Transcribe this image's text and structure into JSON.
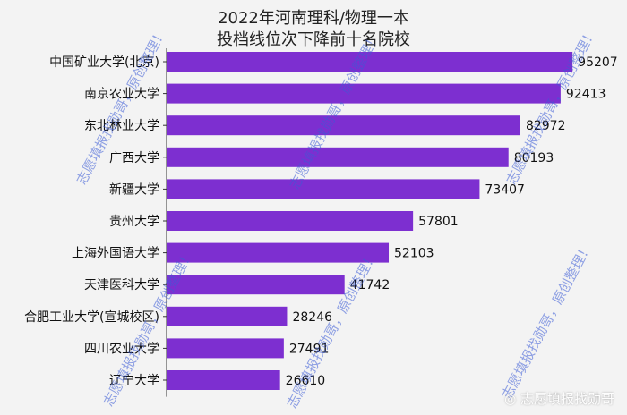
{
  "chart_data": {
    "type": "bar",
    "orientation": "horizontal",
    "title": "2022年河南理科/物理一本",
    "subtitle": "投档线位次下降前十名院校",
    "categories": [
      "中国矿业大学(北京)",
      "南京农业大学",
      "东北林业大学",
      "广西大学",
      "新疆大学",
      "贵州大学",
      "上海外国语大学",
      "天津医科大学",
      "合肥工业大学(宣城校区)",
      "四川农业大学",
      "辽宁大学"
    ],
    "values": [
      95207,
      92413,
      82972,
      80193,
      73407,
      57801,
      52103,
      41742,
      28246,
      27491,
      26610
    ],
    "xlim": [
      0,
      100000
    ],
    "bar_color": "#7d2fd0",
    "grid": false,
    "data_labels": true
  },
  "watermark": {
    "text": "志愿填报找勋哥，原创整理！",
    "color": "#3b5bd6"
  },
  "footer": {
    "brand": "志愿填报找勋哥"
  }
}
